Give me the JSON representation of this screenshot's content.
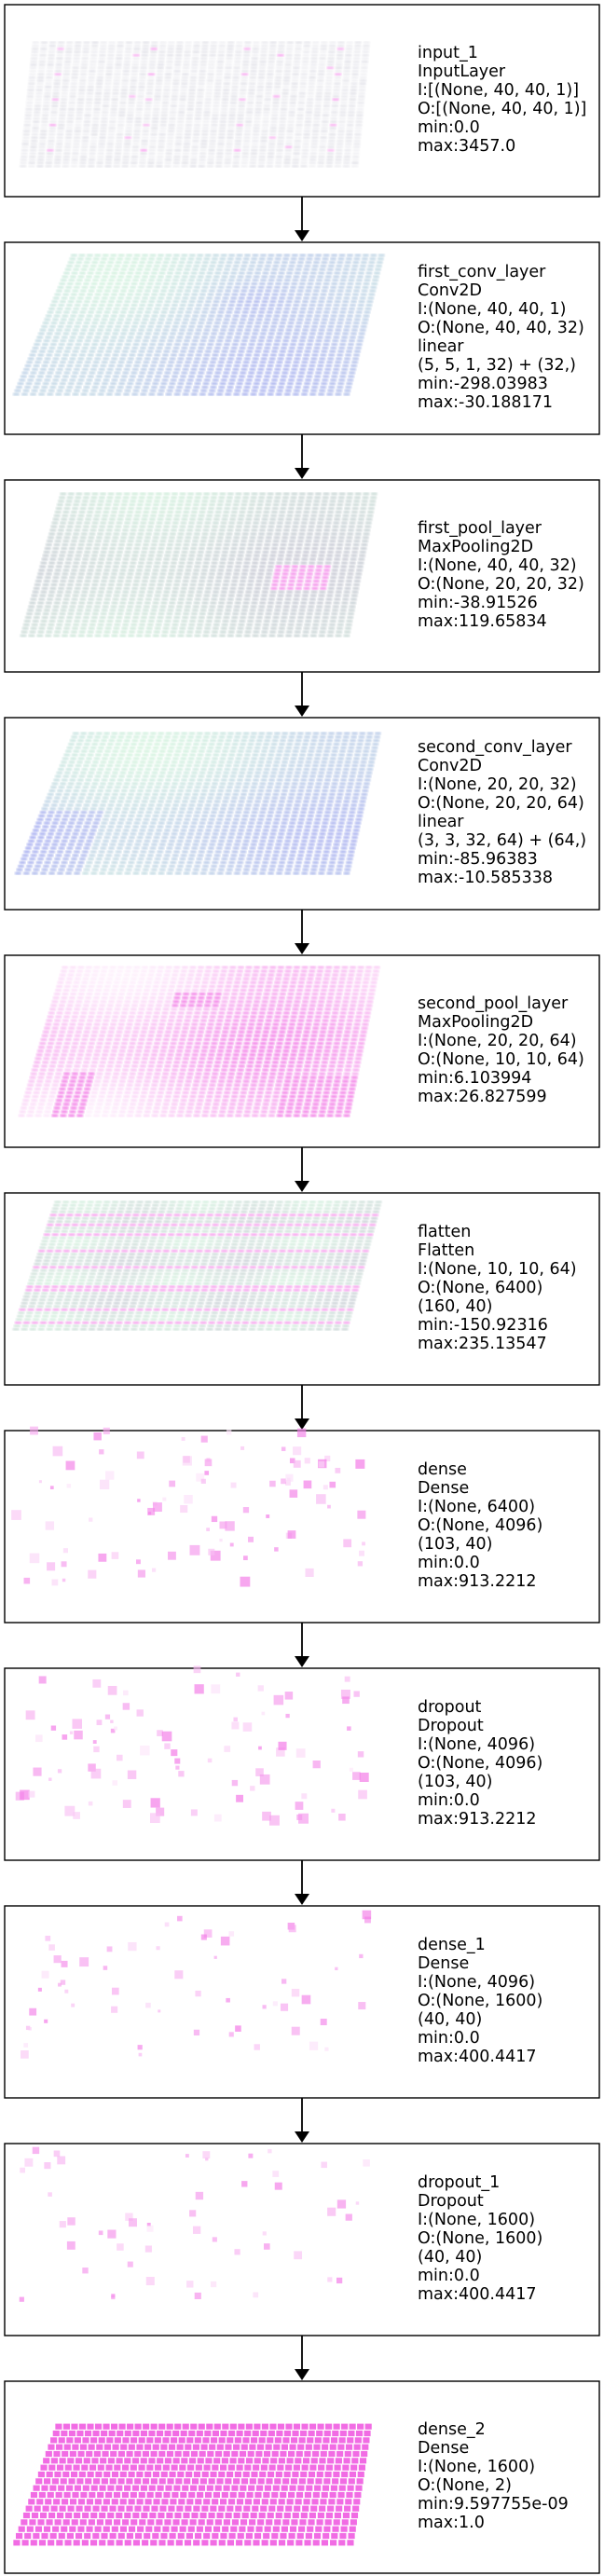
{
  "colors": {
    "box_border": "#000000",
    "text": "#000000",
    "arrow": "#000000",
    "grayish": "#b8b8c8",
    "blue": "#8e95ee",
    "green": "#c9f0d6",
    "magenta": "#f05fe2",
    "white": "#ffffff"
  },
  "layers": [
    {
      "name": "input_1",
      "type": "InputLayer",
      "details": [
        "I:[(None, 40, 40, 1)]",
        "O:[(None, 40, 40, 1)]",
        "min:0.0",
        "max:3457.0"
      ],
      "visual": {
        "kind": "sheet",
        "palette": "input"
      }
    },
    {
      "name": "first_conv_layer",
      "type": "Conv2D",
      "details": [
        "I:(None, 40, 40, 1)",
        "O:(None, 40, 40, 32)",
        "linear",
        "(5, 5, 1, 32) + (32,)",
        "min:-298.03983",
        "max:-30.188171"
      ],
      "visual": {
        "kind": "sheet",
        "palette": "conv1"
      }
    },
    {
      "name": "first_pool_layer",
      "type": "MaxPooling2D",
      "details": [
        "I:(None, 40, 40, 32)",
        "O:(None, 20, 20, 32)",
        "min:-38.91526",
        "max:119.65834"
      ],
      "visual": {
        "kind": "sheet",
        "palette": "pool1"
      }
    },
    {
      "name": "second_conv_layer",
      "type": "Conv2D",
      "details": [
        "I:(None, 20, 20, 32)",
        "O:(None, 20, 20, 64)",
        "linear",
        "(3, 3, 32, 64) + (64,)",
        "min:-85.96383",
        "max:-10.585338"
      ],
      "visual": {
        "kind": "sheet",
        "palette": "conv2"
      }
    },
    {
      "name": "second_pool_layer",
      "type": "MaxPooling2D",
      "details": [
        "I:(None, 20, 20, 64)",
        "O:(None, 10, 10, 64)",
        "min:6.103994",
        "max:26.827599"
      ],
      "visual": {
        "kind": "sheet",
        "palette": "pool2"
      }
    },
    {
      "name": "flatten",
      "type": "Flatten",
      "details": [
        "I:(None, 10, 10, 64)",
        "O:(None, 6400)",
        "(160, 40)",
        "min:-150.92316",
        "max:235.13547"
      ],
      "visual": {
        "kind": "sheet",
        "palette": "flatten"
      }
    },
    {
      "name": "dense",
      "type": "Dense",
      "details": [
        "I:(None, 6400)",
        "O:(None, 4096)",
        "(103, 40)",
        "min:0.0",
        "max:913.2212"
      ],
      "visual": {
        "kind": "sparse",
        "palette": "dense"
      }
    },
    {
      "name": "dropout",
      "type": "Dropout",
      "details": [
        "I:(None, 4096)",
        "O:(None, 4096)",
        "(103, 40)",
        "min:0.0",
        "max:913.2212"
      ],
      "visual": {
        "kind": "sparse",
        "palette": "dropout"
      }
    },
    {
      "name": "dense_1",
      "type": "Dense",
      "details": [
        "I:(None, 4096)",
        "O:(None, 1600)",
        "(40, 40)",
        "min:0.0",
        "max:400.4417"
      ],
      "visual": {
        "kind": "sparse",
        "palette": "dense_1"
      }
    },
    {
      "name": "dropout_1",
      "type": "Dropout",
      "details": [
        "I:(None, 1600)",
        "O:(None, 1600)",
        "(40, 40)",
        "min:0.0",
        "max:400.4417"
      ],
      "visual": {
        "kind": "sparse",
        "palette": "dropout_1"
      }
    },
    {
      "name": "dense_2",
      "type": "Dense",
      "details": [
        "I:(None, 1600)",
        "O:(None, 2)",
        "min:9.597755e-09",
        "max:1.0"
      ],
      "visual": {
        "kind": "solid",
        "palette": "dense_2"
      }
    }
  ]
}
